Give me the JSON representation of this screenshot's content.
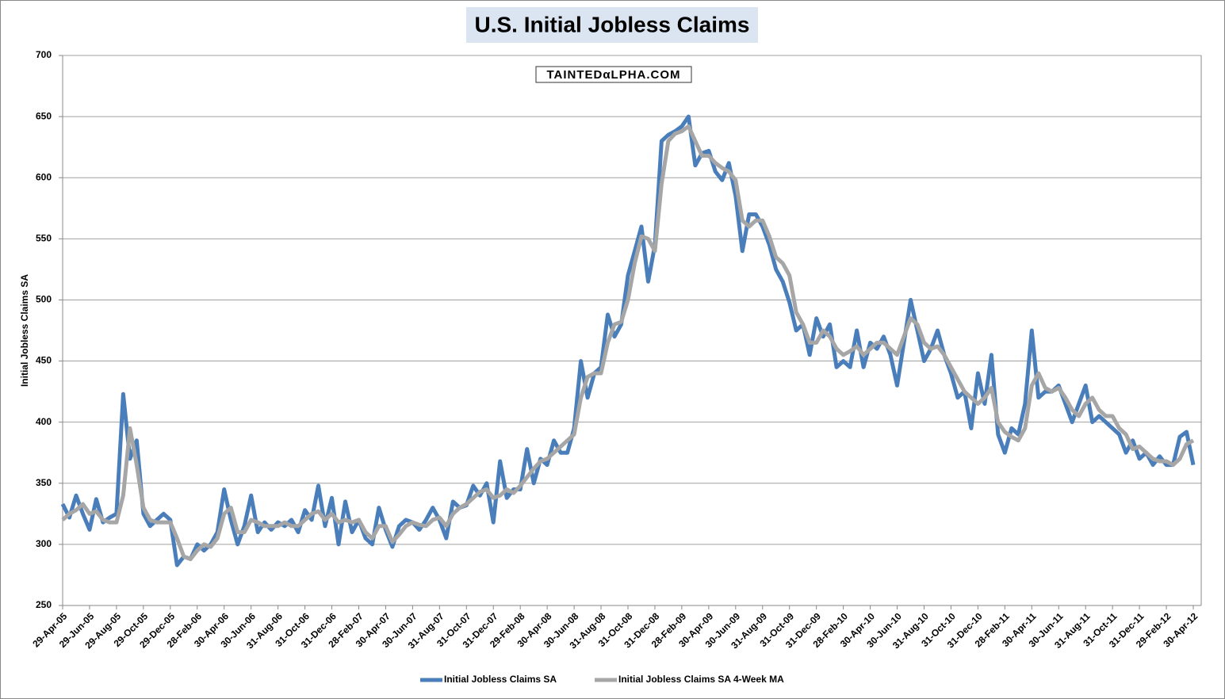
{
  "chart_data": {
    "type": "line",
    "title": "U.S. Initial Jobless Claims",
    "annotation": "TAINTEDαLPHA.COM",
    "y_label": "Initial Jobless Claims SA",
    "categories": [
      "29-Apr-05",
      null,
      null,
      null,
      "29-Jun-05",
      null,
      null,
      null,
      "29-Aug-05",
      null,
      null,
      null,
      "29-Oct-05",
      null,
      null,
      null,
      "29-Dec-05",
      null,
      null,
      null,
      "28-Feb-06",
      null,
      null,
      null,
      "30-Apr-06",
      null,
      null,
      null,
      "30-Jun-06",
      null,
      null,
      null,
      "31-Aug-06",
      null,
      null,
      null,
      "31-Oct-06",
      null,
      null,
      null,
      "31-Dec-06",
      null,
      null,
      null,
      "28-Feb-07",
      null,
      null,
      null,
      "30-Apr-07",
      null,
      null,
      null,
      "30-Jun-07",
      null,
      null,
      null,
      "31-Aug-07",
      null,
      null,
      null,
      "31-Oct-07",
      null,
      null,
      null,
      "31-Dec-07",
      null,
      null,
      null,
      "29-Feb-08",
      null,
      null,
      null,
      "30-Apr-08",
      null,
      null,
      null,
      "30-Jun-08",
      null,
      null,
      null,
      "31-Aug-08",
      null,
      null,
      null,
      "31-Oct-08",
      null,
      null,
      null,
      "31-Dec-08",
      null,
      null,
      null,
      "28-Feb-09",
      null,
      null,
      null,
      "30-Apr-09",
      null,
      null,
      null,
      "30-Jun-09",
      null,
      null,
      null,
      "31-Aug-09",
      null,
      null,
      null,
      "31-Oct-09",
      null,
      null,
      null,
      "31-Dec-09",
      null,
      null,
      null,
      "28-Feb-10",
      null,
      null,
      null,
      "30-Apr-10",
      null,
      null,
      null,
      "30-Jun-10",
      null,
      null,
      null,
      "31-Aug-10",
      null,
      null,
      null,
      "31-Oct-10",
      null,
      null,
      null,
      "31-Dec-10",
      null,
      null,
      null,
      "28-Feb-11",
      null,
      null,
      null,
      "30-Apr-11",
      null,
      null,
      null,
      "30-Jun-11",
      null,
      null,
      null,
      "31-Aug-11",
      null,
      null,
      null,
      "31-Oct-11",
      null,
      null,
      null,
      "31-Dec-11",
      null,
      null,
      null,
      "29-Feb-12",
      null,
      null,
      null,
      "30-Apr-12"
    ],
    "series": [
      {
        "name": "Initial Jobless Claims SA",
        "color": "#4a7ebb",
        "values": [
          333,
          322,
          340,
          325,
          312,
          337,
          318,
          322,
          325,
          423,
          370,
          385,
          325,
          315,
          320,
          325,
          320,
          283,
          290,
          288,
          300,
          295,
          300,
          310,
          345,
          320,
          300,
          315,
          340,
          310,
          318,
          312,
          318,
          315,
          320,
          310,
          328,
          320,
          348,
          315,
          338,
          300,
          335,
          310,
          320,
          305,
          300,
          330,
          312,
          298,
          315,
          320,
          318,
          312,
          320,
          330,
          320,
          305,
          335,
          330,
          332,
          348,
          340,
          350,
          318,
          368,
          338,
          345,
          345,
          378,
          350,
          370,
          365,
          385,
          375,
          375,
          395,
          450,
          420,
          440,
          445,
          488,
          470,
          480,
          520,
          540,
          560,
          515,
          545,
          630,
          635,
          638,
          642,
          650,
          610,
          620,
          622,
          605,
          598,
          612,
          585,
          540,
          570,
          570,
          560,
          545,
          525,
          515,
          498,
          475,
          480,
          455,
          485,
          470,
          480,
          445,
          450,
          445,
          475,
          445,
          465,
          460,
          470,
          455,
          430,
          465,
          500,
          475,
          450,
          460,
          475,
          455,
          440,
          420,
          425,
          395,
          440,
          415,
          455,
          390,
          375,
          395,
          390,
          415,
          475,
          420,
          425,
          425,
          430,
          415,
          400,
          415,
          430,
          400,
          405,
          400,
          395,
          390,
          375,
          385,
          370,
          375,
          365,
          372,
          365,
          365,
          388,
          392,
          365
        ]
      },
      {
        "name": "Initial Jobless Claims SA 4-Week MA",
        "color": "#a6a6a6",
        "values": [
          320,
          325,
          328,
          333,
          325,
          327,
          320,
          318,
          318,
          340,
          395,
          365,
          330,
          320,
          318,
          318,
          318,
          305,
          290,
          288,
          295,
          300,
          298,
          305,
          325,
          330,
          310,
          310,
          320,
          318,
          315,
          315,
          315,
          318,
          315,
          315,
          320,
          325,
          327,
          320,
          325,
          318,
          320,
          318,
          320,
          310,
          305,
          315,
          315,
          302,
          308,
          315,
          318,
          316,
          315,
          320,
          322,
          315,
          325,
          330,
          333,
          338,
          343,
          345,
          338,
          340,
          345,
          342,
          348,
          355,
          362,
          368,
          370,
          375,
          380,
          385,
          390,
          420,
          437,
          440,
          440,
          465,
          480,
          482,
          500,
          530,
          552,
          550,
          540,
          595,
          630,
          636,
          638,
          642,
          630,
          618,
          618,
          612,
          608,
          605,
          598,
          565,
          560,
          565,
          565,
          552,
          535,
          530,
          520,
          490,
          480,
          465,
          465,
          475,
          470,
          460,
          455,
          458,
          462,
          455,
          460,
          465,
          465,
          460,
          455,
          470,
          485,
          480,
          465,
          460,
          462,
          455,
          445,
          435,
          425,
          420,
          415,
          420,
          428,
          400,
          392,
          388,
          385,
          395,
          430,
          440,
          428,
          425,
          428,
          420,
          410,
          405,
          415,
          420,
          410,
          405,
          405,
          395,
          390,
          378,
          380,
          375,
          370,
          368,
          368,
          365,
          370,
          382,
          385
        ]
      }
    ],
    "ylim": [
      250,
      700
    ],
    "yticks": [
      250,
      300,
      350,
      400,
      450,
      500,
      550,
      600,
      650,
      700
    ],
    "grid": true,
    "legend": "bottom"
  }
}
